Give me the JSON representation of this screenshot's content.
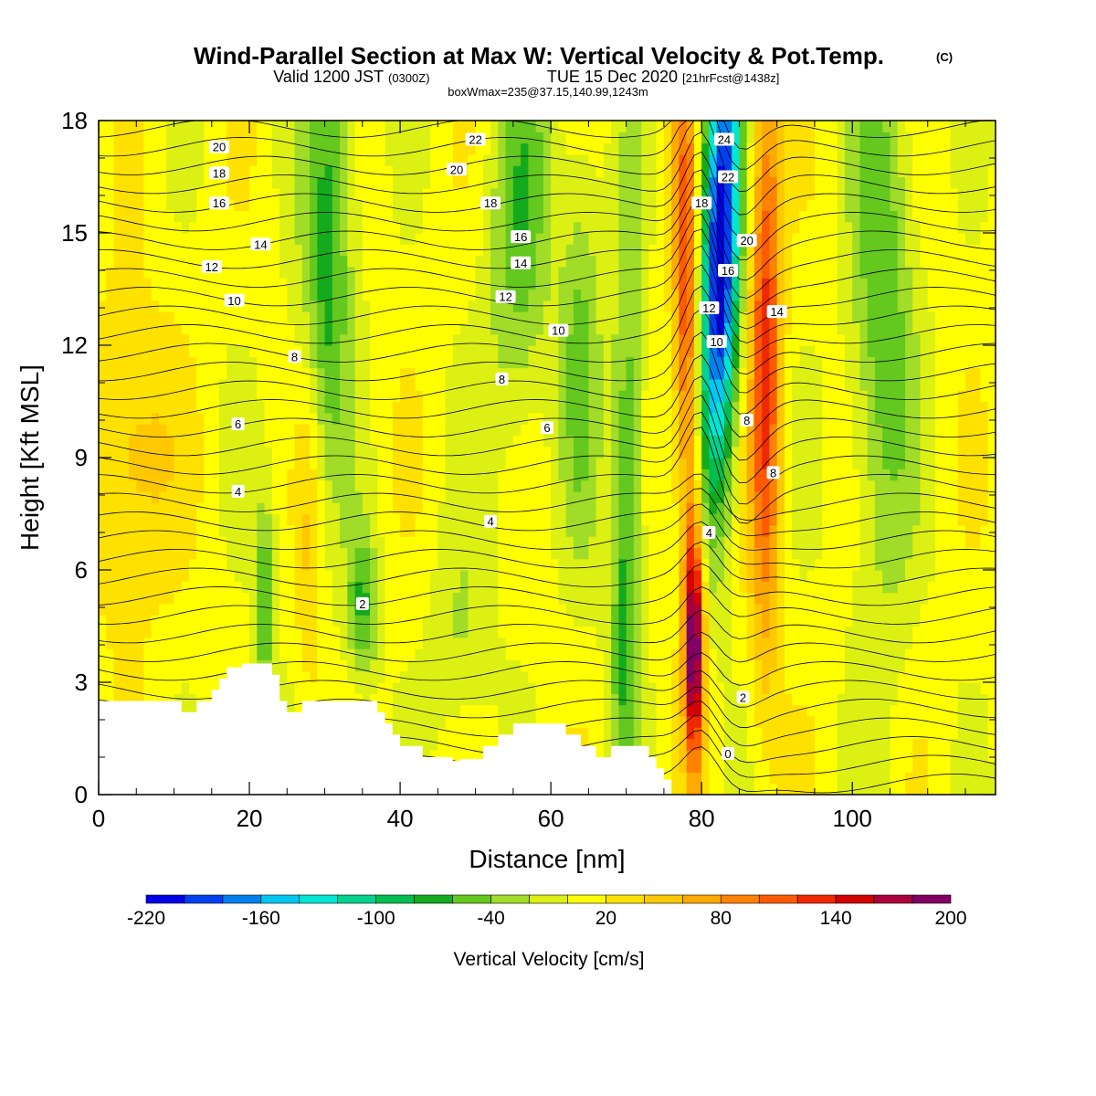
{
  "header": {
    "title_main": "Wind-Parallel Section at Max W: Vertical Velocity & Pot.Temp.",
    "title_mark": "(C)",
    "subtitle_a": "Valid 1200 JST",
    "subtitle_b": "(0300Z)",
    "subtitle_c": "TUE 15 Dec 2020",
    "subtitle_d": "[21hrFcst@1438z]",
    "subtitle_e": "boxWmax=235@37.15,140.99,1243m"
  },
  "chart_data": {
    "type": "heatmap",
    "xlabel": "Distance [nm]",
    "ylabel": "Height [Kft MSL]",
    "xlim": [
      0,
      119
    ],
    "ylim": [
      0,
      18
    ],
    "x_ticks": [
      "0",
      "20",
      "40",
      "60",
      "80",
      "100"
    ],
    "x_tick_values": [
      0,
      20,
      40,
      60,
      80,
      100
    ],
    "y_ticks": [
      "0",
      "3",
      "6",
      "9",
      "12",
      "15",
      "18"
    ],
    "y_tick_values": [
      0,
      3,
      6,
      9,
      12,
      15,
      18
    ],
    "colorbar": {
      "label": "Vertical Velocity [cm/s]",
      "tick_labels": [
        "-220",
        "-160",
        "-100",
        "-40",
        "20",
        "80",
        "140",
        "200"
      ],
      "tick_values": [
        -220,
        -160,
        -100,
        -40,
        20,
        80,
        140,
        200
      ],
      "min": -220,
      "max": 200,
      "step": 20,
      "colors": [
        "#0000e6",
        "#0040f0",
        "#0080f0",
        "#00c8f0",
        "#00e6d2",
        "#00d28c",
        "#00be50",
        "#14aa1e",
        "#64c81e",
        "#a0dc28",
        "#dcf014",
        "#ffff00",
        "#ffe100",
        "#ffc800",
        "#ffaa00",
        "#ff8200",
        "#ff5a00",
        "#f02800",
        "#d20000",
        "#aa003c",
        "#820064"
      ]
    },
    "terrain": [
      [
        0,
        2.5
      ],
      [
        11,
        2.5
      ],
      [
        11,
        2.2
      ],
      [
        13,
        2.2
      ],
      [
        13,
        2.5
      ],
      [
        15,
        2.5
      ],
      [
        15,
        2.8
      ],
      [
        16,
        2.8
      ],
      [
        16,
        3.1
      ],
      [
        17,
        3.1
      ],
      [
        17,
        3.4
      ],
      [
        19,
        3.4
      ],
      [
        19,
        3.5
      ],
      [
        23,
        3.5
      ],
      [
        23,
        3.2
      ],
      [
        24,
        3.2
      ],
      [
        24,
        2.5
      ],
      [
        25,
        2.5
      ],
      [
        25,
        2.2
      ],
      [
        27,
        2.2
      ],
      [
        27,
        2.5
      ],
      [
        37,
        2.5
      ],
      [
        37,
        2.2
      ],
      [
        38,
        2.2
      ],
      [
        38,
        1.9
      ],
      [
        39,
        1.9
      ],
      [
        39,
        1.6
      ],
      [
        40,
        1.6
      ],
      [
        40,
        1.3
      ],
      [
        43,
        1.3
      ],
      [
        43,
        1.0
      ],
      [
        47,
        1.0
      ],
      [
        47,
        0.9
      ],
      [
        48,
        0.9
      ],
      [
        48,
        0.95
      ],
      [
        51,
        0.95
      ],
      [
        51,
        1.3
      ],
      [
        53,
        1.3
      ],
      [
        53,
        1.6
      ],
      [
        55,
        1.6
      ],
      [
        55,
        1.9
      ],
      [
        62,
        1.9
      ],
      [
        62,
        1.6
      ],
      [
        64,
        1.6
      ],
      [
        64,
        1.3
      ],
      [
        66,
        1.3
      ],
      [
        66,
        1.0
      ],
      [
        68,
        1.0
      ],
      [
        68,
        1.3
      ],
      [
        73,
        1.3
      ],
      [
        73,
        1.0
      ],
      [
        74,
        1.0
      ],
      [
        74,
        0.7
      ],
      [
        75,
        0.7
      ],
      [
        75,
        0.4
      ],
      [
        76,
        0.4
      ],
      [
        76,
        0.0
      ]
    ],
    "w_features": [
      {
        "x": 82.5,
        "y_center": 14.5,
        "sx": 1.8,
        "sy": 4.5,
        "value": -235,
        "x_tilt": 0.1
      },
      {
        "x": 79,
        "y_center": 4,
        "sx": 0.9,
        "sy": 2.2,
        "value": 190,
        "x_tilt": 0
      },
      {
        "x": 78,
        "y_center": 13,
        "sx": 1.2,
        "sy": 5,
        "value": 115,
        "x_tilt": -0.05
      },
      {
        "x": 88.5,
        "y_center": 12,
        "sx": 1.5,
        "sy": 6,
        "value": 120,
        "x_tilt": 0
      },
      {
        "x": 30,
        "y_center": 14,
        "sx": 2.5,
        "sy": 5,
        "value": -85,
        "x_tilt": 0.2
      },
      {
        "x": 22,
        "y_center": 5,
        "sx": 1.0,
        "sy": 2,
        "value": -70,
        "x_tilt": 0
      },
      {
        "x": 28,
        "y_center": 8,
        "sx": 1.5,
        "sy": 4,
        "value": 55,
        "x_tilt": 0
      },
      {
        "x": 35,
        "y_center": 5,
        "sx": 1.5,
        "sy": 1.5,
        "value": -70,
        "x_tilt": 0
      },
      {
        "x": 56,
        "y_center": 15,
        "sx": 3,
        "sy": 4,
        "value": -60,
        "x_tilt": 0.15
      },
      {
        "x": 70,
        "y_center": 7,
        "sx": 1.5,
        "sy": 6,
        "value": -80,
        "x_tilt": 0.05
      },
      {
        "x": 104,
        "y_center": 13,
        "sx": 3,
        "sy": 6,
        "value": -65,
        "x_tilt": 0
      },
      {
        "x": 4,
        "y_center": 9,
        "sx": 4,
        "sy": 3,
        "value": 50,
        "x_tilt": 0
      },
      {
        "x": 64,
        "y_center": 12,
        "sx": 2,
        "sy": 4,
        "value": -50,
        "x_tilt": 0
      },
      {
        "x": 48,
        "y_center": 4,
        "sx": 3,
        "sy": 2,
        "value": -30,
        "x_tilt": 0
      }
    ],
    "theta_contours": {
      "levels": [
        0,
        2,
        4,
        6,
        8,
        10,
        12,
        14,
        16,
        18,
        20,
        22,
        24
      ],
      "labels": [
        {
          "text": "20",
          "x": 16,
          "y": 17.3
        },
        {
          "text": "18",
          "x": 16,
          "y": 16.6
        },
        {
          "text": "16",
          "x": 16,
          "y": 15.8
        },
        {
          "text": "14",
          "x": 21.5,
          "y": 14.7
        },
        {
          "text": "12",
          "x": 15,
          "y": 14.1
        },
        {
          "text": "10",
          "x": 18,
          "y": 13.2
        },
        {
          "text": "8",
          "x": 26,
          "y": 11.7
        },
        {
          "text": "6",
          "x": 18.5,
          "y": 9.9
        },
        {
          "text": "4",
          "x": 18.5,
          "y": 8.1
        },
        {
          "text": "2",
          "x": 35,
          "y": 5.1
        },
        {
          "text": "22",
          "x": 50,
          "y": 17.5
        },
        {
          "text": "20",
          "x": 47.5,
          "y": 16.7
        },
        {
          "text": "18",
          "x": 52,
          "y": 15.8
        },
        {
          "text": "16",
          "x": 56,
          "y": 14.9
        },
        {
          "text": "14",
          "x": 56,
          "y": 14.2
        },
        {
          "text": "12",
          "x": 54,
          "y": 13.3
        },
        {
          "text": "10",
          "x": 61,
          "y": 12.4
        },
        {
          "text": "8",
          "x": 53.5,
          "y": 11.1
        },
        {
          "text": "6",
          "x": 59.5,
          "y": 9.8
        },
        {
          "text": "4",
          "x": 52,
          "y": 7.3
        },
        {
          "text": "24",
          "x": 83,
          "y": 17.5
        },
        {
          "text": "22",
          "x": 83.5,
          "y": 16.5
        },
        {
          "text": "18",
          "x": 80,
          "y": 15.8
        },
        {
          "text": "20",
          "x": 86,
          "y": 14.8
        },
        {
          "text": "16",
          "x": 83.5,
          "y": 14.0
        },
        {
          "text": "12",
          "x": 81,
          "y": 13.0
        },
        {
          "text": "14",
          "x": 90,
          "y": 12.9
        },
        {
          "text": "10",
          "x": 82,
          "y": 12.1
        },
        {
          "text": "8",
          "x": 86,
          "y": 10.0
        },
        {
          "text": "8",
          "x": 89.5,
          "y": 8.6
        },
        {
          "text": "4",
          "x": 81,
          "y": 7.0
        },
        {
          "text": "2",
          "x": 85.5,
          "y": 2.6
        },
        {
          "text": "0",
          "x": 83.5,
          "y": 1.1
        }
      ]
    }
  }
}
